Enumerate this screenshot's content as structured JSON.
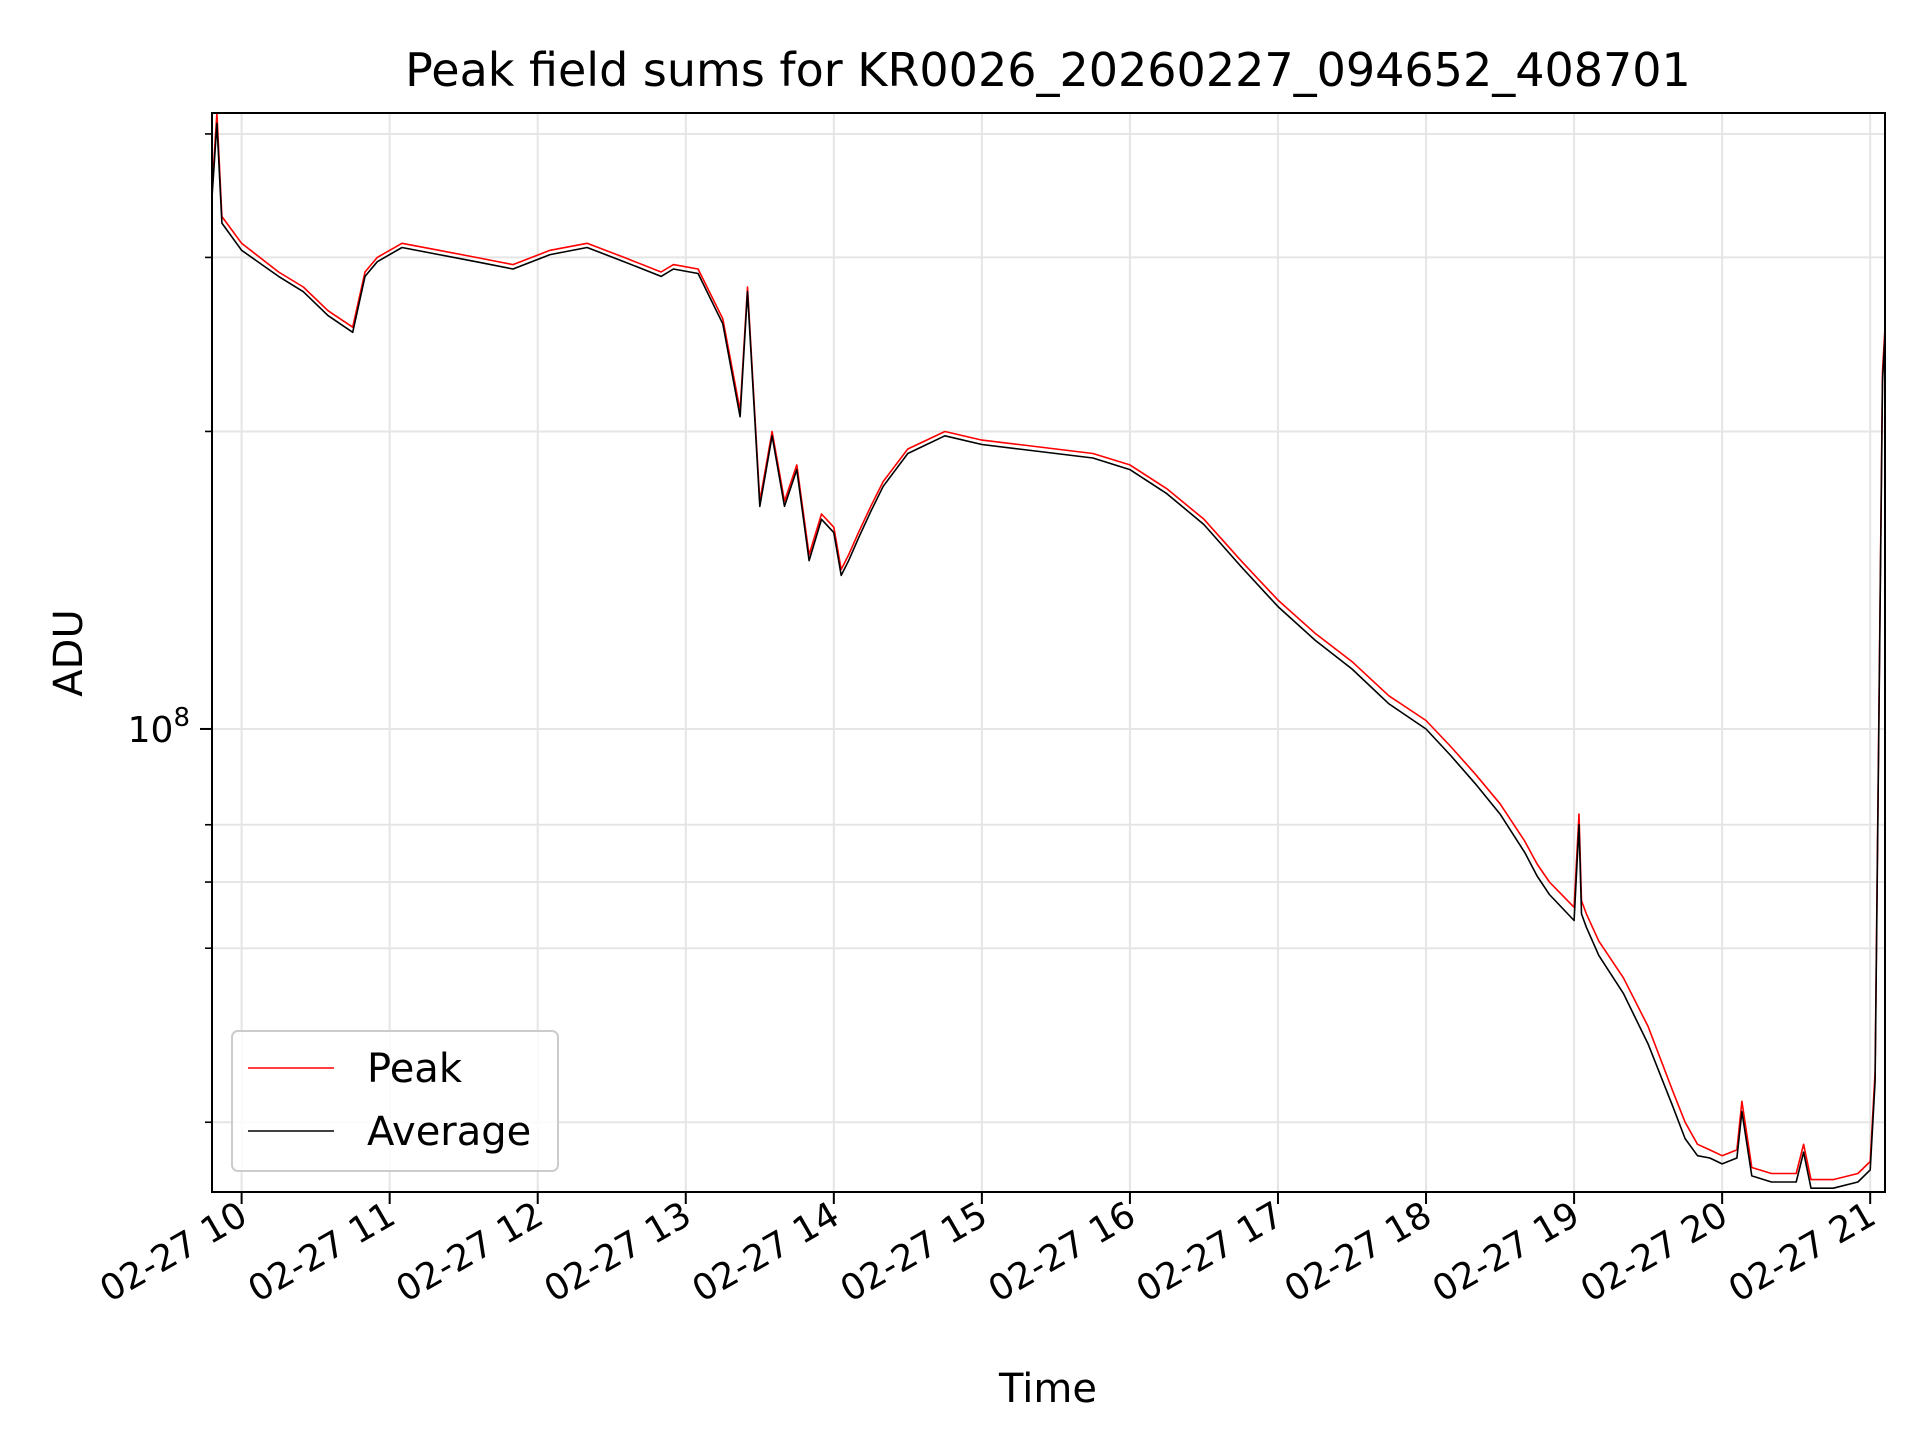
{
  "chart_data": {
    "type": "line",
    "title": "Peak field sums for KR0026_20260227_094652_408701",
    "xlabel": "Time",
    "ylabel": "ADU",
    "yscale": "log",
    "xlim": [
      "2026-02-27 09:48",
      "2026-02-27 21:06"
    ],
    "ylim": [
      34000000,
      420000000
    ],
    "x_ticks": [
      "02-27 10",
      "02-27 11",
      "02-27 12",
      "02-27 13",
      "02-27 14",
      "02-27 15",
      "02-27 16",
      "02-27 17",
      "02-27 18",
      "02-27 19",
      "02-27 20",
      "02-27 21"
    ],
    "y_tick_label": {
      "base": "10",
      "exponent": "8"
    },
    "grid": true,
    "legend_position": "lower-left",
    "colors": {
      "Peak": "#ff0000",
      "Average": "#000000"
    },
    "x": [
      "2026-02-27 09:48",
      "2026-02-27 09:50",
      "2026-02-27 09:52",
      "2026-02-27 10:00",
      "2026-02-27 10:15",
      "2026-02-27 10:25",
      "2026-02-27 10:35",
      "2026-02-27 10:45",
      "2026-02-27 10:50",
      "2026-02-27 10:55",
      "2026-02-27 11:05",
      "2026-02-27 11:20",
      "2026-02-27 11:35",
      "2026-02-27 11:50",
      "2026-02-27 12:05",
      "2026-02-27 12:20",
      "2026-02-27 12:35",
      "2026-02-27 12:50",
      "2026-02-27 12:55",
      "2026-02-27 13:05",
      "2026-02-27 13:15",
      "2026-02-27 13:22",
      "2026-02-27 13:25",
      "2026-02-27 13:30",
      "2026-02-27 13:35",
      "2026-02-27 13:40",
      "2026-02-27 13:45",
      "2026-02-27 13:50",
      "2026-02-27 13:55",
      "2026-02-27 14:00",
      "2026-02-27 14:03",
      "2026-02-27 14:06",
      "2026-02-27 14:10",
      "2026-02-27 14:15",
      "2026-02-27 14:20",
      "2026-02-27 14:30",
      "2026-02-27 14:45",
      "2026-02-27 15:00",
      "2026-02-27 15:15",
      "2026-02-27 15:30",
      "2026-02-27 15:45",
      "2026-02-27 16:00",
      "2026-02-27 16:15",
      "2026-02-27 16:30",
      "2026-02-27 16:45",
      "2026-02-27 17:00",
      "2026-02-27 17:15",
      "2026-02-27 17:30",
      "2026-02-27 17:45",
      "2026-02-27 18:00",
      "2026-02-27 18:10",
      "2026-02-27 18:20",
      "2026-02-27 18:30",
      "2026-02-27 18:40",
      "2026-02-27 18:45",
      "2026-02-27 18:50",
      "2026-02-27 19:00",
      "2026-02-27 19:02",
      "2026-02-27 19:03",
      "2026-02-27 19:05",
      "2026-02-27 19:10",
      "2026-02-27 19:20",
      "2026-02-27 19:30",
      "2026-02-27 19:40",
      "2026-02-27 19:45",
      "2026-02-27 19:50",
      "2026-02-27 19:55",
      "2026-02-27 20:00",
      "2026-02-27 20:06",
      "2026-02-27 20:08",
      "2026-02-27 20:12",
      "2026-02-27 20:20",
      "2026-02-27 20:30",
      "2026-02-27 20:33",
      "2026-02-27 20:36",
      "2026-02-27 20:45",
      "2026-02-27 20:55",
      "2026-02-27 21:00",
      "2026-02-27 21:02",
      "2026-02-27 21:05",
      "2026-02-27 21:06"
    ],
    "series": [
      {
        "name": "Peak",
        "values": [
          350000000,
          420000000,
          330000000,
          310000000,
          290000000,
          280000000,
          265000000,
          255000000,
          290000000,
          300000000,
          310000000,
          305000000,
          300000000,
          295000000,
          305000000,
          310000000,
          300000000,
          290000000,
          295000000,
          292000000,
          260000000,
          210000000,
          280000000,
          170000000,
          200000000,
          170000000,
          185000000,
          150000000,
          165000000,
          160000000,
          145000000,
          150000000,
          158000000,
          168000000,
          178000000,
          192000000,
          200000000,
          196000000,
          194000000,
          192000000,
          190000000,
          185000000,
          175000000,
          163000000,
          148000000,
          135000000,
          125000000,
          117000000,
          108000000,
          102000000,
          96000000,
          90000000,
          84000000,
          77000000,
          73000000,
          70000000,
          66000000,
          82000000,
          67000000,
          65000000,
          61000000,
          56000000,
          50000000,
          43000000,
          40000000,
          38000000,
          37500000,
          37000000,
          37500000,
          42000000,
          36000000,
          35500000,
          35500000,
          38000000,
          35000000,
          35000000,
          35500000,
          36500000,
          45000000,
          230000000,
          255000000
        ]
      },
      {
        "name": "Average",
        "values": [
          345000000,
          410000000,
          325000000,
          305000000,
          287000000,
          277000000,
          262000000,
          252000000,
          287000000,
          297000000,
          307000000,
          302000000,
          297000000,
          292000000,
          302000000,
          307000000,
          297000000,
          287000000,
          292000000,
          289000000,
          257000000,
          207000000,
          277000000,
          168000000,
          198000000,
          168000000,
          183000000,
          148000000,
          163000000,
          158000000,
          143000000,
          148000000,
          156000000,
          166000000,
          176000000,
          190000000,
          198000000,
          194000000,
          192000000,
          190000000,
          188000000,
          183000000,
          173000000,
          161000000,
          146000000,
          133000000,
          123000000,
          115000000,
          106000000,
          100000000,
          94000000,
          88000000,
          82000000,
          75000000,
          71000000,
          68000000,
          64000000,
          80000000,
          65000000,
          63000000,
          59000000,
          54000000,
          48000000,
          41500000,
          38500000,
          37000000,
          36800000,
          36300000,
          36800000,
          41000000,
          35300000,
          34800000,
          34800000,
          37300000,
          34300000,
          34300000,
          34800000,
          35800000,
          44000000,
          225000000,
          250000000
        ]
      }
    ]
  }
}
